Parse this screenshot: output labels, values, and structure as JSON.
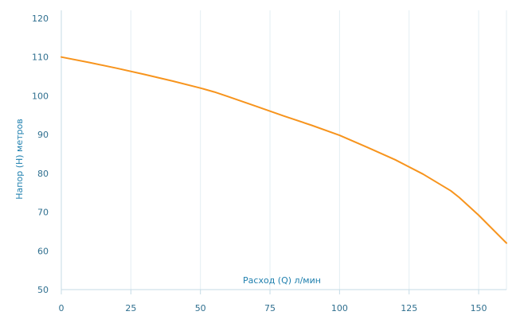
{
  "chart_data": {
    "type": "line",
    "title": "",
    "xlabel": "Расход (Q) л/мин",
    "ylabel": "Напор (H) метров",
    "xlim": [
      0,
      160
    ],
    "ylim": [
      50,
      120
    ],
    "xticks": [
      0,
      25,
      50,
      75,
      100,
      125,
      150
    ],
    "yticks": [
      50,
      60,
      70,
      80,
      90,
      100,
      110,
      120
    ],
    "grid": "vertical",
    "legend": "none",
    "colors": {
      "line": "#f7941d",
      "grid": "#e3eef3",
      "axis": "#c5dbe6",
      "text": "#2f6f8f",
      "title": "#1e7fae"
    },
    "series": [
      {
        "x": [
          0,
          10,
          20,
          30,
          40,
          50,
          55,
          60,
          70,
          80,
          90,
          100,
          110,
          120,
          130,
          140,
          143,
          150,
          160
        ],
        "y": [
          110,
          108.6,
          107.1,
          105.5,
          103.8,
          102,
          101,
          99.8,
          97.3,
          94.8,
          92.4,
          89.8,
          86.7,
          83.5,
          79.8,
          75.5,
          73.8,
          69.2,
          62
        ]
      }
    ]
  }
}
